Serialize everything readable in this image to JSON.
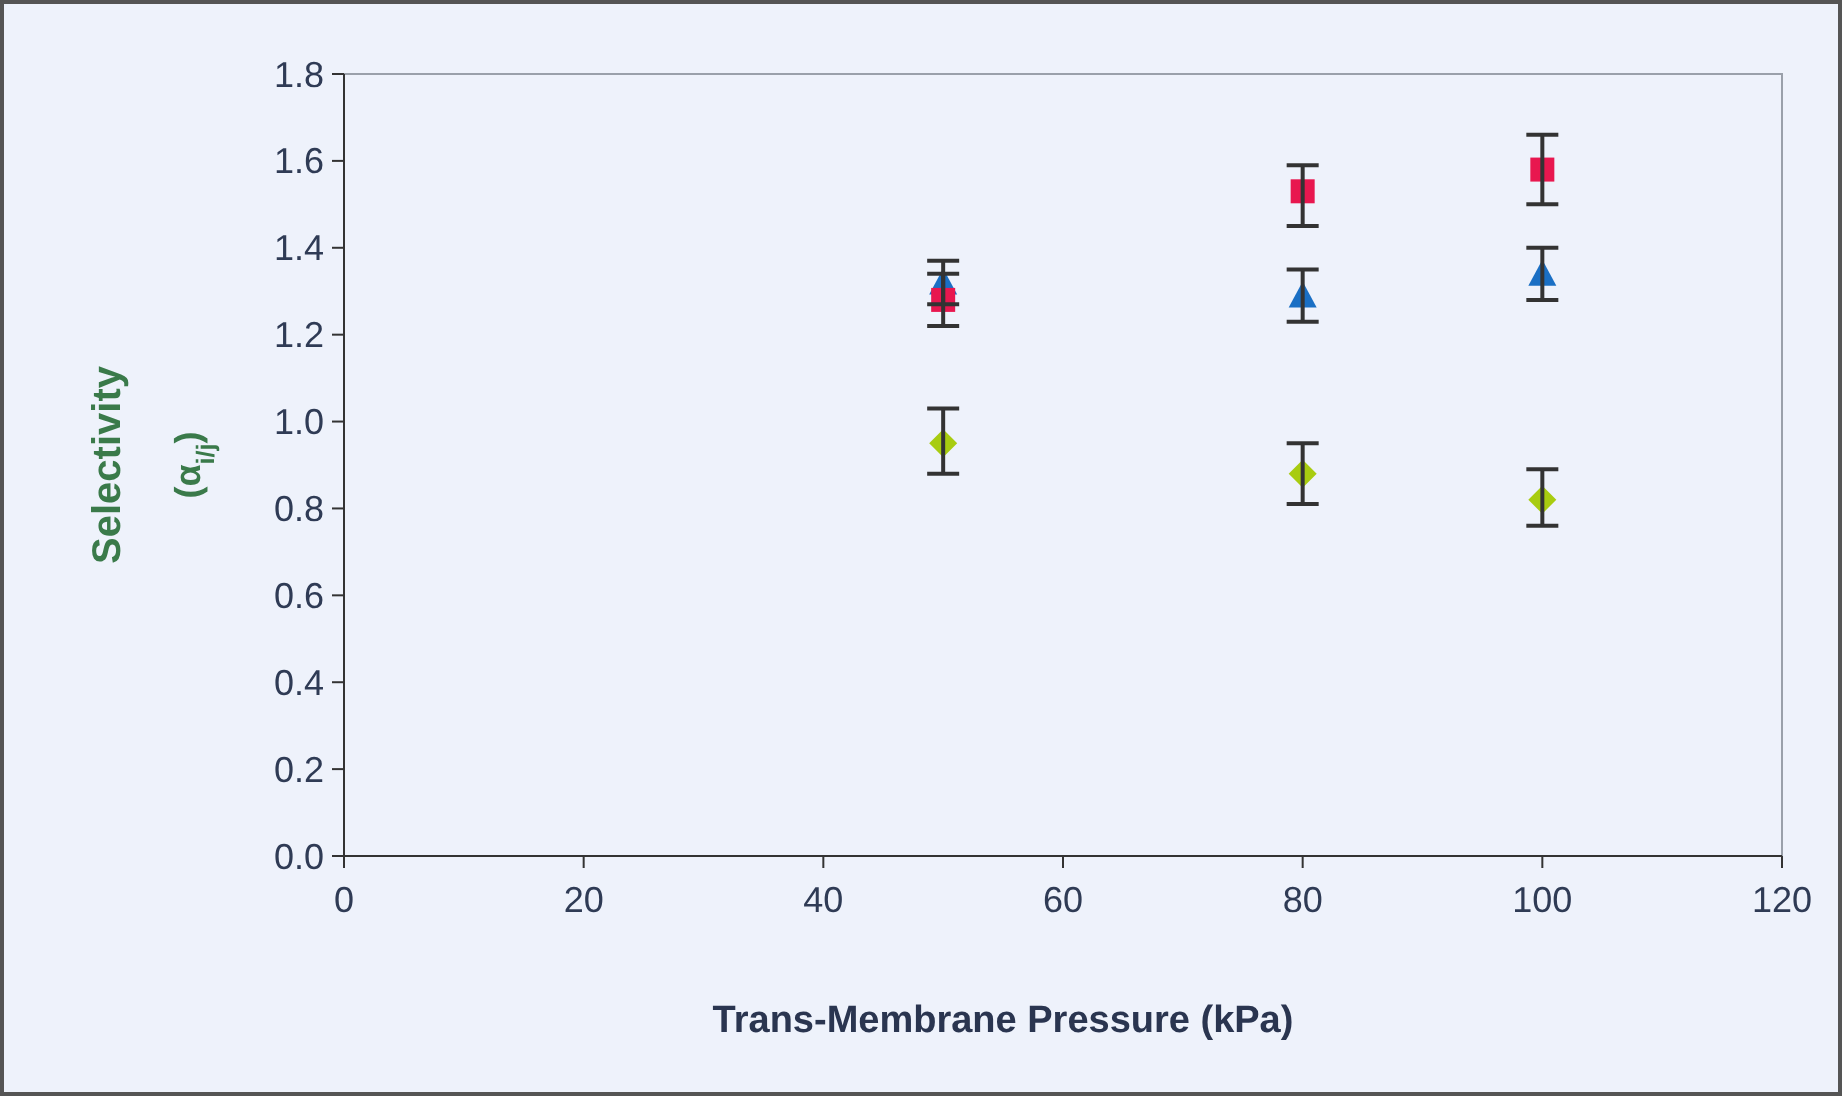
{
  "chart_data": {
    "type": "scatter",
    "xlabel": "Trans-Membrane Pressure (kPa)",
    "ylabel": "Selectivity\n(α$_{i/j}$)",
    "xlim": [
      0,
      120
    ],
    "xticks": [
      0,
      20,
      40,
      60,
      80,
      100,
      120
    ],
    "ylim": [
      0,
      1.8
    ],
    "yticks": [
      {
        "value": 0,
        "label": "0.0"
      },
      0.2,
      0.4,
      0.6,
      0.8,
      {
        "value": 1,
        "label": "1.0"
      },
      1.2,
      1.4,
      1.6,
      1.8
    ],
    "grid": false,
    "series": [
      {
        "color": "#e8174f",
        "marker": "square",
        "x": [
          50,
          80,
          100
        ],
        "values": [
          1.28,
          1.53,
          1.58
        ],
        "errors": [
          [
            1.22,
            1.34
          ],
          [
            1.45,
            1.59
          ],
          [
            1.5,
            1.66
          ]
        ]
      },
      {
        "color": "#1a6fc4",
        "marker": "triangle",
        "x": [
          50,
          80,
          100
        ],
        "values": [
          1.32,
          1.29,
          1.34
        ],
        "errors": [
          [
            1.27,
            1.37
          ],
          [
            1.23,
            1.35
          ],
          [
            1.28,
            1.4
          ]
        ]
      },
      {
        "color": "#a8cc10",
        "marker": "diamond",
        "x": [
          50,
          80,
          100
        ],
        "values": [
          0.95,
          0.88,
          0.82
        ],
        "errors": [
          [
            0.88,
            1.03
          ],
          [
            0.81,
            0.95
          ],
          [
            0.76,
            0.89
          ]
        ]
      }
    ]
  }
}
